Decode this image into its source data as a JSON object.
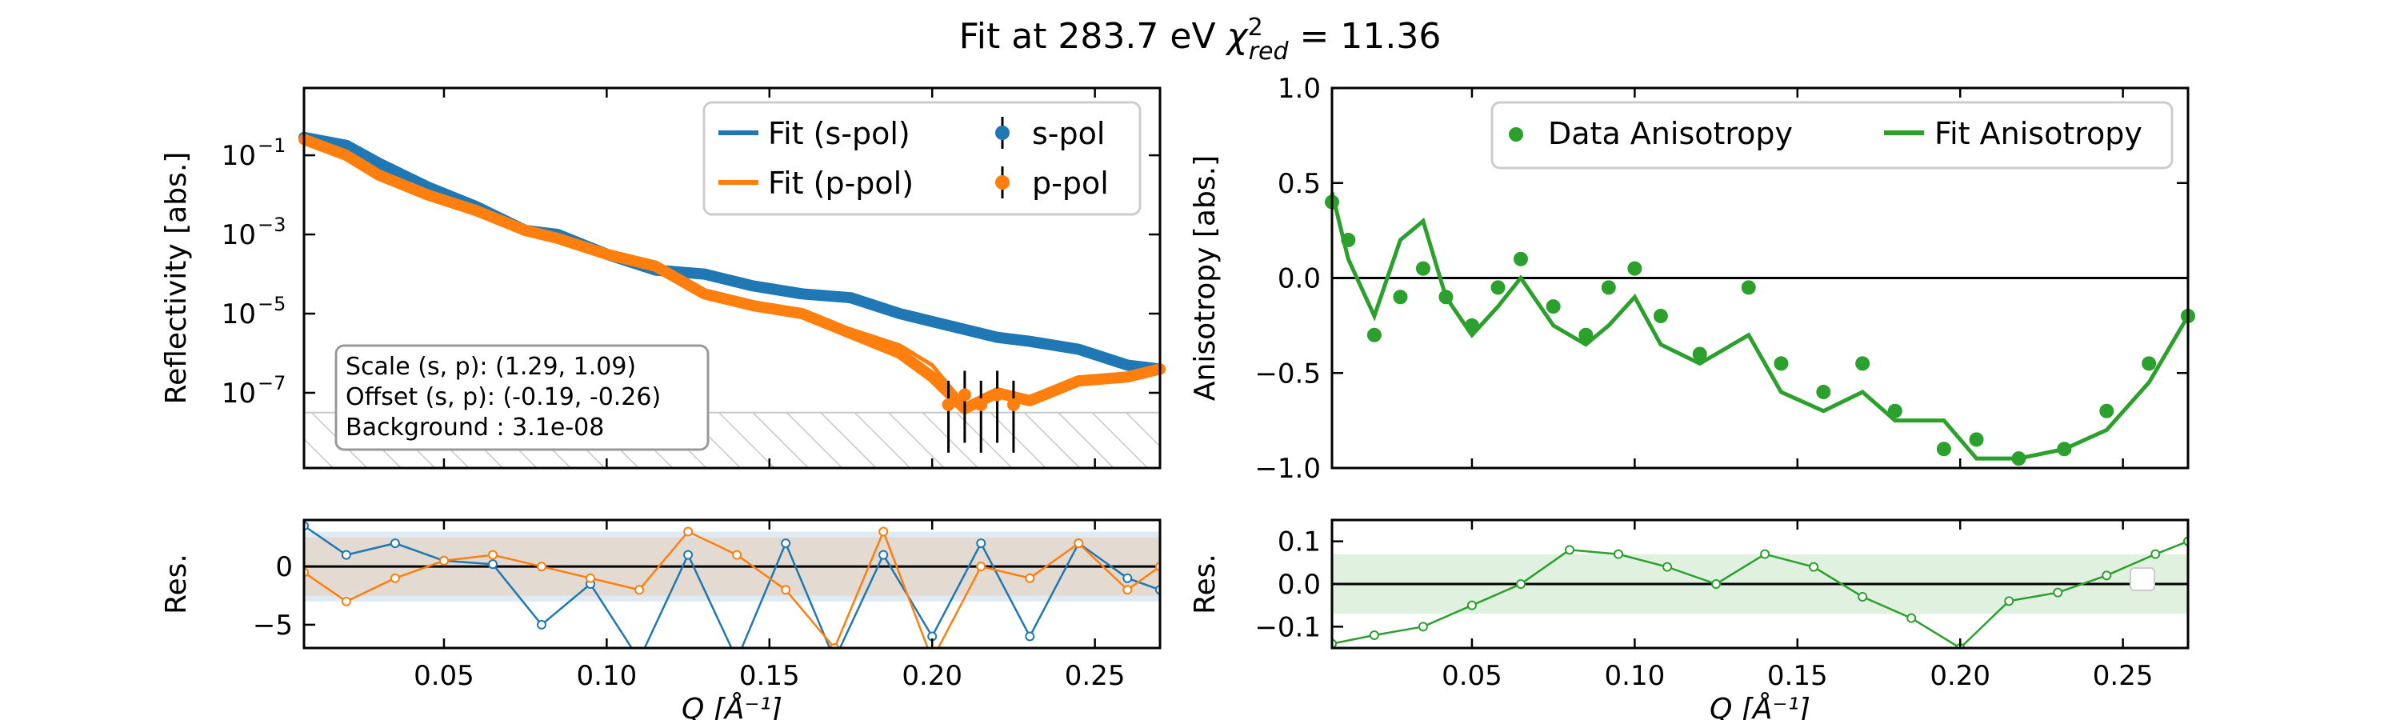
{
  "figure": {
    "title_main": "Fit at 283.7 eV ",
    "title_chi": "χ",
    "title_chi_sup": "2",
    "title_chi_sub": "red",
    "title_value": " = 11.36"
  },
  "annotation": {
    "lines": [
      "Scale (s, p): (1.29, 1.09)",
      "Offset (s, p): (-0.19, -0.26)",
      "Background : 3.1e-08"
    ]
  },
  "colors": {
    "s_pol": "#1f77b4",
    "p_pol": "#ff7f0e",
    "aniso": "#2ca02c"
  },
  "chart_data": [
    {
      "id": "reflectivity",
      "type": "line",
      "ylabel": "Reflectivity [abs.]",
      "yscale": "log",
      "xlim": [
        0.007,
        0.27
      ],
      "ylim_exp": [
        -8.9,
        0.7
      ],
      "yticks": [
        {
          "exp": -1
        },
        {
          "exp": -3
        },
        {
          "exp": -5
        },
        {
          "exp": -7
        }
      ],
      "background_exp": -7.5,
      "legend": [
        {
          "label": "Fit (s-pol)",
          "kind": "line",
          "series": "s"
        },
        {
          "label": "s-pol",
          "kind": "errorpoint",
          "series": "s"
        },
        {
          "label": "Fit (p-pol)",
          "kind": "line",
          "series": "p"
        },
        {
          "label": "p-pol",
          "kind": "errorpoint",
          "series": "p"
        }
      ],
      "x": [
        0.007,
        0.02,
        0.03,
        0.045,
        0.06,
        0.075,
        0.085,
        0.1,
        0.115,
        0.13,
        0.145,
        0.16,
        0.175,
        0.19,
        0.2,
        0.21,
        0.22,
        0.23,
        0.245,
        0.26,
        0.27
      ],
      "s_data_exp": [
        -0.55,
        -0.75,
        -1.2,
        -1.8,
        -2.3,
        -2.9,
        -3.0,
        -3.5,
        -3.9,
        -4.0,
        -4.3,
        -4.5,
        -4.6,
        -5.0,
        -5.2,
        -5.4,
        -5.6,
        -5.7,
        -5.9,
        -6.3,
        -6.4
      ],
      "p_data_exp": [
        -0.6,
        -1.0,
        -1.5,
        -2.0,
        -2.4,
        -2.9,
        -3.1,
        -3.5,
        -3.8,
        -4.5,
        -4.8,
        -5.0,
        -5.5,
        -6.0,
        -6.6,
        -7.4,
        -7.0,
        -7.2,
        -6.7,
        -6.6,
        -6.4
      ],
      "p_fit_exp": [
        -0.55,
        -0.95,
        -1.5,
        -2.0,
        -2.4,
        -2.9,
        -3.1,
        -3.5,
        -3.8,
        -4.5,
        -4.8,
        -5.0,
        -5.4,
        -5.8,
        -6.3,
        -7.3,
        -7.0,
        -7.1,
        -6.7,
        -6.6,
        -6.4
      ]
    },
    {
      "id": "reflectivity-residuals",
      "type": "line",
      "ylabel": "Res.",
      "xlim": [
        0.007,
        0.27
      ],
      "ylim": [
        -7,
        4
      ],
      "yticks": [
        "0",
        "−5"
      ],
      "band": [
        -2.5,
        2.5
      ],
      "x": [
        0.007,
        0.02,
        0.035,
        0.05,
        0.065,
        0.08,
        0.095,
        0.11,
        0.125,
        0.14,
        0.155,
        0.17,
        0.185,
        0.2,
        0.215,
        0.23,
        0.245,
        0.26,
        0.27
      ],
      "s_res": [
        3.5,
        1,
        2,
        0.5,
        0.2,
        -5,
        -1.5,
        -8,
        1,
        -8,
        2,
        -8,
        1,
        -6,
        2,
        -6,
        2,
        -1,
        -2
      ],
      "p_res": [
        -0.5,
        -3,
        -1,
        0.5,
        1,
        0,
        -1,
        -2,
        3,
        1,
        -2,
        -7,
        3,
        -8,
        0,
        -1,
        2,
        -2,
        0
      ]
    },
    {
      "id": "anisotropy",
      "type": "scatter",
      "ylabel": "Anisotropy [abs.]",
      "xlim": [
        0.007,
        0.27
      ],
      "ylim": [
        -1.0,
        1.0
      ],
      "yticks": [
        "1.0",
        "0.5",
        "0.0",
        "−0.5",
        "−1.0"
      ],
      "legend": [
        {
          "label": "Data Anisotropy",
          "kind": "point"
        },
        {
          "label": "Fit Anisotropy",
          "kind": "line"
        }
      ],
      "x": [
        0.007,
        0.012,
        0.02,
        0.028,
        0.035,
        0.042,
        0.05,
        0.058,
        0.065,
        0.075,
        0.085,
        0.092,
        0.1,
        0.108,
        0.12,
        0.135,
        0.145,
        0.158,
        0.17,
        0.18,
        0.195,
        0.205,
        0.218,
        0.232,
        0.245,
        0.258,
        0.27
      ],
      "data": [
        0.4,
        0.2,
        -0.3,
        -0.1,
        0.05,
        -0.1,
        -0.25,
        -0.05,
        0.1,
        -0.15,
        -0.3,
        -0.05,
        0.05,
        -0.2,
        -0.4,
        -0.05,
        -0.45,
        -0.6,
        -0.45,
        -0.7,
        -0.9,
        -0.85,
        -0.95,
        -0.9,
        -0.7,
        -0.45,
        -0.2
      ],
      "fit": [
        0.45,
        0.1,
        -0.2,
        0.2,
        0.3,
        -0.1,
        -0.3,
        -0.15,
        0.0,
        -0.25,
        -0.35,
        -0.25,
        -0.1,
        -0.35,
        -0.45,
        -0.3,
        -0.6,
        -0.7,
        -0.6,
        -0.75,
        -0.75,
        -0.95,
        -0.95,
        -0.9,
        -0.8,
        -0.55,
        -0.2
      ]
    },
    {
      "id": "anisotropy-residuals",
      "type": "line",
      "ylabel": "Res.",
      "xlabel": "Q [Å⁻¹]",
      "xlim": [
        0.007,
        0.27
      ],
      "ylim": [
        -0.15,
        0.15
      ],
      "yticks": [
        "0.1",
        "0.0",
        "−0.1"
      ],
      "band": [
        -0.07,
        0.07
      ],
      "xticks": [
        "0.05",
        "0.10",
        "0.15",
        "0.20",
        "0.25"
      ],
      "x": [
        0.007,
        0.02,
        0.035,
        0.05,
        0.065,
        0.08,
        0.095,
        0.11,
        0.125,
        0.14,
        0.155,
        0.17,
        0.185,
        0.2,
        0.215,
        0.23,
        0.245,
        0.26,
        0.27
      ],
      "res": [
        -0.14,
        -0.12,
        -0.1,
        -0.05,
        0.0,
        0.08,
        0.07,
        0.04,
        0.0,
        0.07,
        0.04,
        -0.03,
        -0.08,
        -0.15,
        -0.04,
        -0.02,
        0.02,
        0.07,
        0.1
      ]
    }
  ]
}
